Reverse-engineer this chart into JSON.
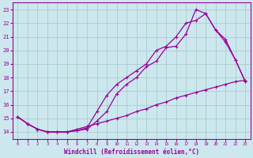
{
  "xlabel": "Windchill (Refroidissement éolien,°C)",
  "background_color": "#cce8ee",
  "grid_color": "#aacccc",
  "line_color": "#990099",
  "xlim": [
    -0.5,
    23.5
  ],
  "ylim": [
    13.5,
    23.5
  ],
  "xticks": [
    0,
    1,
    2,
    3,
    4,
    5,
    6,
    7,
    8,
    9,
    10,
    11,
    12,
    13,
    14,
    15,
    16,
    17,
    18,
    19,
    20,
    21,
    22,
    23
  ],
  "yticks": [
    14,
    15,
    16,
    17,
    18,
    19,
    20,
    21,
    22,
    23
  ],
  "line1_x": [
    0,
    1,
    2,
    3,
    4,
    5,
    6,
    7,
    8,
    9,
    10,
    11,
    12,
    13,
    14,
    15,
    16,
    17,
    18,
    19,
    20,
    21,
    22,
    23
  ],
  "line1_y": [
    15.1,
    14.6,
    14.2,
    14.0,
    14.0,
    14.0,
    14.1,
    14.2,
    14.8,
    15.5,
    16.8,
    17.5,
    18.0,
    18.8,
    19.2,
    20.2,
    20.3,
    21.2,
    23.0,
    22.7,
    21.5,
    20.6,
    19.3,
    17.7
  ],
  "line2_x": [
    0,
    1,
    2,
    3,
    4,
    5,
    6,
    7,
    8,
    9,
    10,
    11,
    12,
    13,
    14,
    15,
    16,
    17,
    18,
    19,
    20,
    21,
    22,
    23
  ],
  "line2_y": [
    15.1,
    14.6,
    14.2,
    14.0,
    14.0,
    14.0,
    14.1,
    14.3,
    15.5,
    16.7,
    17.5,
    18.0,
    18.5,
    19.0,
    20.0,
    20.3,
    21.0,
    22.0,
    22.2,
    22.7,
    21.5,
    20.8,
    19.3,
    17.7
  ],
  "line3_x": [
    0,
    1,
    2,
    3,
    4,
    5,
    6,
    7,
    8,
    9,
    10,
    11,
    12,
    13,
    14,
    15,
    16,
    17,
    18,
    19,
    20,
    21,
    22,
    23
  ],
  "line3_y": [
    15.1,
    14.6,
    14.2,
    14.0,
    14.0,
    14.0,
    14.2,
    14.4,
    14.6,
    14.8,
    15.0,
    15.2,
    15.5,
    15.7,
    16.0,
    16.2,
    16.5,
    16.7,
    16.9,
    17.1,
    17.3,
    17.5,
    17.7,
    17.8
  ]
}
